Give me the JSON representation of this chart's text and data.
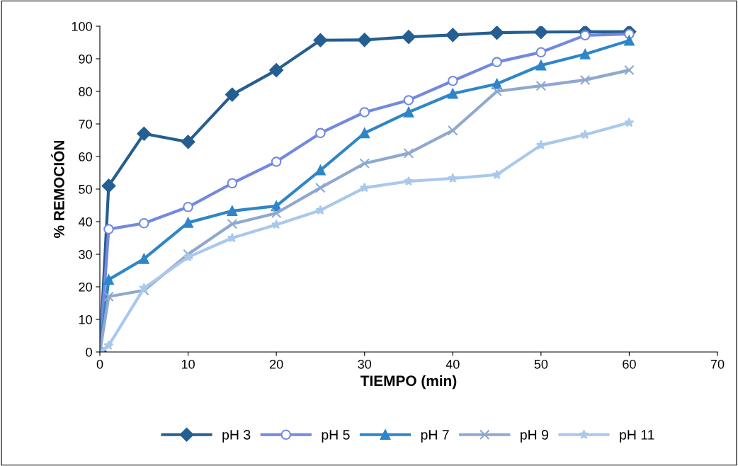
{
  "chart_data": {
    "type": "line",
    "xlabel": "TIEMPO (min)",
    "ylabel": "% REMOCIÓN",
    "x": [
      0,
      1,
      5,
      10,
      15,
      20,
      25,
      30,
      35,
      40,
      45,
      50,
      55,
      60
    ],
    "series": [
      {
        "name": "pH 3",
        "color": "#255e91",
        "marker": "diamond",
        "values": [
          0,
          51,
          67,
          64.5,
          79,
          86.5,
          95.7,
          95.8,
          96.7,
          97.3,
          98,
          98.2,
          98.3,
          98.3
        ]
      },
      {
        "name": "pH 5",
        "color": "#7389e0",
        "marker": "circle",
        "values": [
          0,
          37.7,
          39.5,
          44.5,
          51.8,
          58.4,
          67.2,
          73.6,
          77.3,
          83.2,
          89,
          92,
          97.2,
          97.6
        ]
      },
      {
        "name": "pH 7",
        "color": "#2e86c8",
        "marker": "triangle",
        "values": [
          0,
          22.2,
          28.6,
          39.7,
          43.3,
          44.8,
          55.8,
          67.2,
          73.6,
          79.3,
          82.3,
          88,
          91.4,
          95.6
        ]
      },
      {
        "name": "pH 9",
        "color": "#8fa8d0",
        "marker": "cross",
        "values": [
          0,
          17,
          18.9,
          30,
          39.3,
          42.6,
          50.4,
          57.9,
          61,
          68,
          80,
          81.7,
          83.5,
          86.5
        ]
      },
      {
        "name": "pH 11",
        "color": "#a9c8ec",
        "marker": "star",
        "values": [
          0,
          2,
          19.6,
          29.1,
          35,
          39.1,
          43.5,
          50.4,
          52.4,
          53.3,
          54.4,
          63.5,
          66.7,
          70.4
        ]
      }
    ],
    "xlim": [
      0,
      70
    ],
    "xticks": [
      0,
      10,
      20,
      30,
      40,
      50,
      60,
      70
    ],
    "ylim": [
      0,
      100
    ],
    "yticks": [
      0,
      10,
      20,
      30,
      40,
      50,
      60,
      70,
      80,
      90,
      100
    ],
    "grid": false,
    "legend": "bottom"
  }
}
